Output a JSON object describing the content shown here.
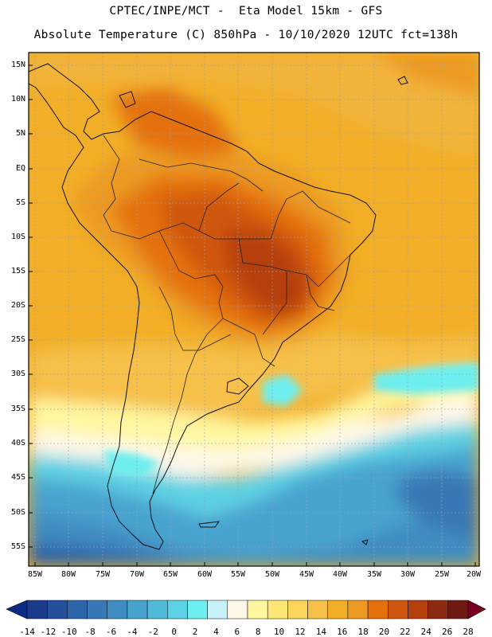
{
  "header": {
    "line1": "CPTEC/INPE/MCT -  Eta Model 15km - GFS",
    "line2": "Absolute Temperature (C) 850hPa - 10/10/2020 12UTC fct=138h"
  },
  "map": {
    "lat_labels": [
      "15N",
      "10N",
      "5N",
      "EQ",
      "5S",
      "10S",
      "15S",
      "20S",
      "25S",
      "30S",
      "35S",
      "40S",
      "45S",
      "50S",
      "55S"
    ],
    "lon_labels": [
      "85W",
      "80W",
      "75W",
      "70W",
      "65W",
      "60W",
      "55W",
      "50W",
      "45W",
      "40W",
      "35W",
      "30W",
      "25W",
      "20W"
    ]
  },
  "colorbar": {
    "labels": [
      "-14",
      "-12",
      "-10",
      "-8",
      "-6",
      "-4",
      "-2",
      "0",
      "2",
      "4",
      "6",
      "8",
      "10",
      "12",
      "14",
      "16",
      "18",
      "20",
      "22",
      "24",
      "26",
      "28"
    ],
    "colors": [
      "#1d3b8c",
      "#254f9b",
      "#2e64aa",
      "#3778b6",
      "#3f8dc2",
      "#48a3cf",
      "#52bad9",
      "#5dd2e4",
      "#6deeef",
      "#c8f2fa",
      "#fff8e8",
      "#fff7a0",
      "#fde774",
      "#fbd55a",
      "#f6c04a",
      "#f2ae26",
      "#ec9a24",
      "#e4710c",
      "#cf5610",
      "#b5400f",
      "#8c2a12",
      "#6e1a12"
    ],
    "left_end": "#0b2b86",
    "right_end": "#7a0022"
  }
}
